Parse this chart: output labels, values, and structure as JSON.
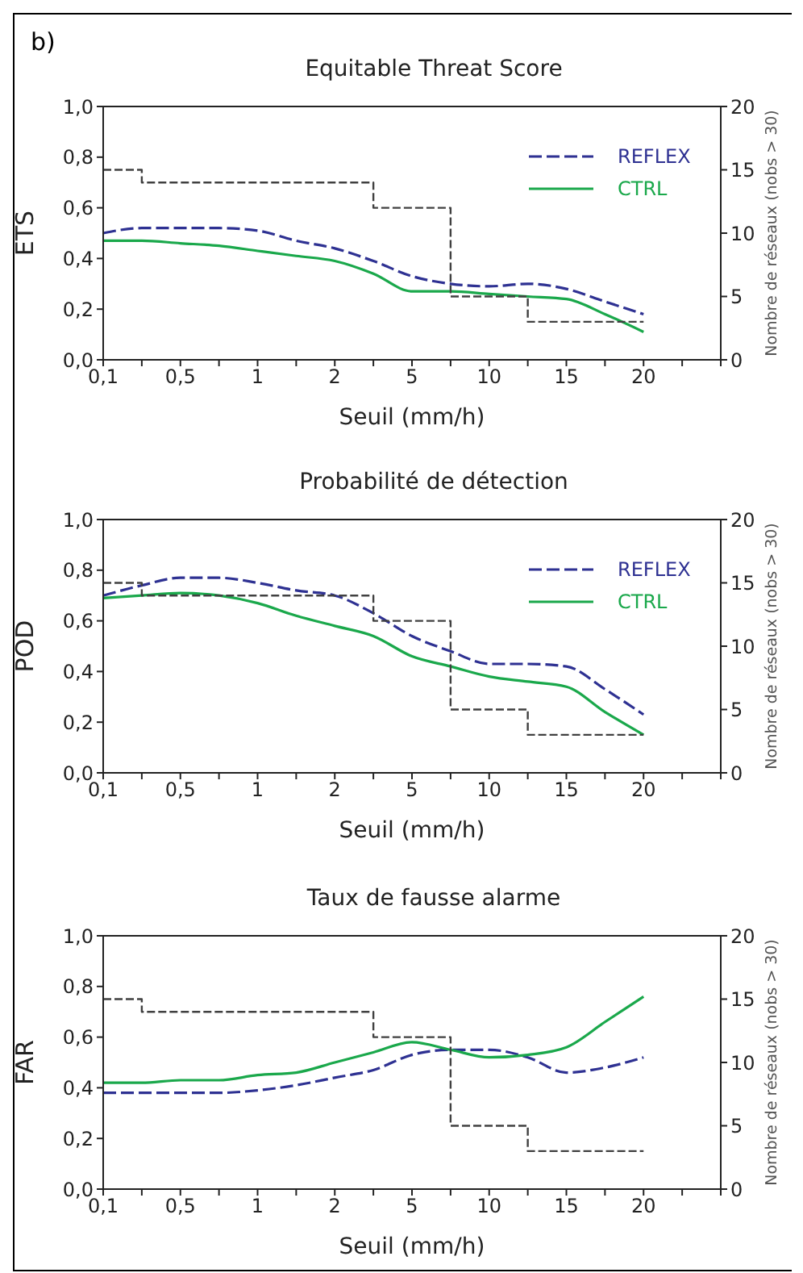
{
  "chart_data": [
    {
      "type": "line",
      "title": "Equitable Threat Score",
      "xlabel": "Seuil (mm/h)",
      "ylabel": "ETS",
      "y2label": "Nombre de réseaux (nobs > 30)",
      "annotations": [
        "b)"
      ],
      "categories": [
        "0,1",
        null,
        "0,5",
        null,
        "1",
        null,
        "2",
        null,
        "5",
        null,
        "10",
        null,
        "15",
        null,
        "20",
        null,
        null
      ],
      "series": [
        {
          "name": "REFLEX",
          "color": "#2e3192",
          "line_style": "dashed",
          "values": [
            0.5,
            0.52,
            0.52,
            0.52,
            0.51,
            0.47,
            0.44,
            0.39,
            0.33,
            0.3,
            0.29,
            0.3,
            0.28,
            0.23,
            0.18,
            null,
            null
          ]
        },
        {
          "name": "CTRL",
          "color": "#1aa84b",
          "line_style": "solid",
          "values": [
            0.47,
            0.47,
            0.46,
            0.45,
            0.43,
            0.41,
            0.39,
            0.34,
            0.27,
            0.27,
            0.26,
            0.25,
            0.24,
            0.18,
            0.11,
            null,
            null
          ]
        },
        {
          "type": "step",
          "axis": "y2",
          "color": "#404040",
          "line_style": "dashed",
          "values": [
            15,
            14,
            14,
            14,
            14,
            14,
            14,
            12,
            12,
            5,
            5,
            3,
            3,
            3,
            3,
            null,
            null
          ]
        }
      ],
      "ylim": [
        0,
        1
      ],
      "yticks": [
        {
          "value": 0,
          "label": "0,0"
        },
        {
          "value": 0.2,
          "label": "0,2"
        },
        {
          "value": 0.4,
          "label": "0,4"
        },
        {
          "value": 0.6,
          "label": "0,6"
        },
        {
          "value": 0.8,
          "label": "0,8"
        },
        {
          "value": 1,
          "label": "1,0"
        }
      ],
      "y2lim": [
        0,
        20
      ],
      "y2ticks": [
        0,
        5,
        10,
        15,
        20
      ],
      "legend": "top right",
      "marker": "none"
    },
    {
      "type": "line",
      "title": "Probabilité de détection",
      "xlabel": "Seuil (mm/h)",
      "ylabel": "POD",
      "y2label": "Nombre de réseaux (nobs > 30)",
      "categories": [
        "0,1",
        null,
        "0,5",
        null,
        "1",
        null,
        "2",
        null,
        "5",
        null,
        "10",
        null,
        "15",
        null,
        "20",
        null,
        null
      ],
      "series": [
        {
          "name": "REFLEX",
          "color": "#2e3192",
          "line_style": "dashed",
          "values": [
            0.7,
            0.74,
            0.77,
            0.77,
            0.75,
            0.72,
            0.7,
            0.63,
            0.54,
            0.48,
            0.43,
            0.43,
            0.42,
            0.33,
            0.23,
            null,
            null
          ]
        },
        {
          "name": "CTRL",
          "color": "#1aa84b",
          "line_style": "solid",
          "values": [
            0.69,
            0.7,
            0.71,
            0.7,
            0.67,
            0.62,
            0.58,
            0.54,
            0.46,
            0.42,
            0.38,
            0.36,
            0.34,
            0.24,
            0.15,
            null,
            null
          ]
        },
        {
          "type": "step",
          "axis": "y2",
          "color": "#404040",
          "line_style": "dashed",
          "values": [
            15,
            14,
            14,
            14,
            14,
            14,
            14,
            12,
            12,
            5,
            5,
            3,
            3,
            3,
            3,
            null,
            null
          ]
        }
      ],
      "ylim": [
        0,
        1
      ],
      "yticks": [
        {
          "value": 0,
          "label": "0,0"
        },
        {
          "value": 0.2,
          "label": "0,2"
        },
        {
          "value": 0.4,
          "label": "0,4"
        },
        {
          "value": 0.6,
          "label": "0,6"
        },
        {
          "value": 0.8,
          "label": "0,8"
        },
        {
          "value": 1,
          "label": "1,0"
        }
      ],
      "y2lim": [
        0,
        20
      ],
      "y2ticks": [
        0,
        5,
        10,
        15,
        20
      ],
      "legend": "top right",
      "marker": "none"
    },
    {
      "type": "line",
      "title": "Taux de fausse alarme",
      "xlabel": "Seuil (mm/h)",
      "ylabel": "FAR",
      "y2label": "Nombre de réseaux (nobs > 30)",
      "categories": [
        "0,1",
        null,
        "0,5",
        null,
        "1",
        null,
        "2",
        null,
        "5",
        null,
        "10",
        null,
        "15",
        null,
        "20",
        null,
        null
      ],
      "series": [
        {
          "color": "#2e3192",
          "line_style": "dashed",
          "values": [
            0.38,
            0.38,
            0.38,
            0.38,
            0.39,
            0.41,
            0.44,
            0.47,
            0.53,
            0.55,
            0.55,
            0.52,
            0.46,
            0.48,
            0.52,
            null,
            null
          ]
        },
        {
          "color": "#1aa84b",
          "line_style": "solid",
          "values": [
            0.42,
            0.42,
            0.43,
            0.43,
            0.45,
            0.46,
            0.5,
            0.54,
            0.58,
            0.55,
            0.52,
            0.53,
            0.56,
            0.66,
            0.76,
            null,
            null
          ]
        },
        {
          "type": "step",
          "axis": "y2",
          "color": "#404040",
          "line_style": "dashed",
          "values": [
            15,
            14,
            14,
            14,
            14,
            14,
            14,
            12,
            12,
            5,
            5,
            3,
            3,
            3,
            3,
            null,
            null
          ]
        }
      ],
      "ylim": [
        0,
        1
      ],
      "yticks": [
        {
          "value": 0,
          "label": "0,0"
        },
        {
          "value": 0.2,
          "label": "0,2"
        },
        {
          "value": 0.4,
          "label": "0,4"
        },
        {
          "value": 0.6,
          "label": "0,6"
        },
        {
          "value": 0.8,
          "label": "0,8"
        },
        {
          "value": 1,
          "label": "1,0"
        }
      ],
      "y2lim": [
        0,
        20
      ],
      "y2ticks": [
        0,
        5,
        10,
        15,
        20
      ],
      "marker": "none"
    }
  ]
}
